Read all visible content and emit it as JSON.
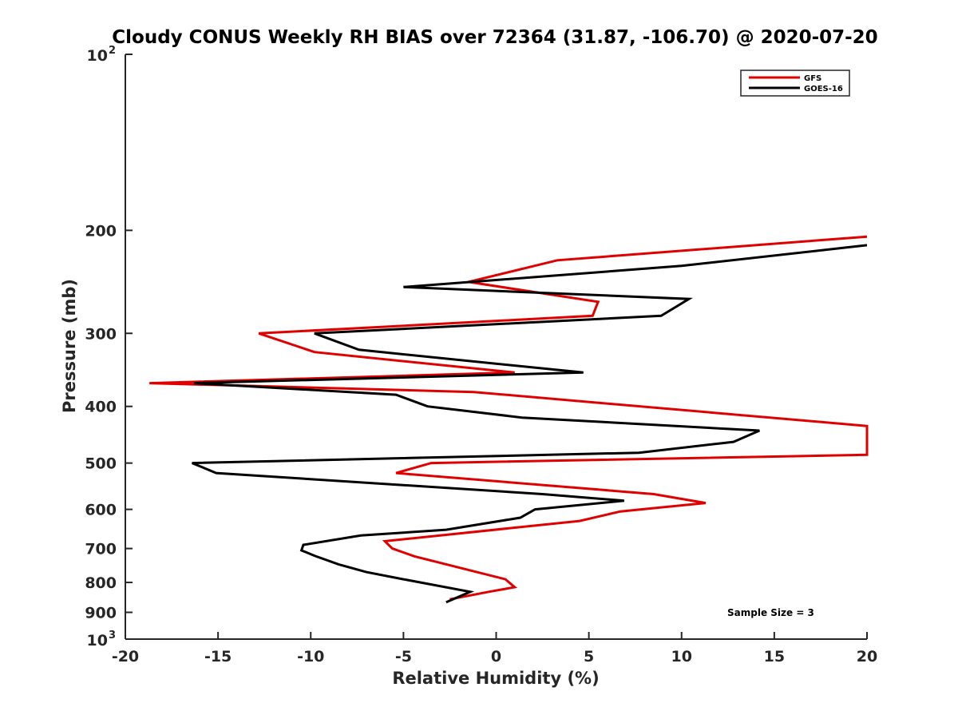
{
  "chart_data": {
    "type": "line",
    "title": "Cloudy CONUS Weekly RH BIAS over 72364 (31.87, -106.70) @ 2020-07-20",
    "xlabel": "Relative Humidity (%)",
    "ylabel": "Pressure (mb)",
    "xlim": [
      -20,
      20
    ],
    "ylim": [
      100,
      1000
    ],
    "y_scale": "log",
    "y_reversed": true,
    "xticks": [
      "-20",
      "-15",
      "-10",
      "-5",
      "0",
      "5",
      "10",
      "15",
      "20"
    ],
    "yticks_plain": [
      "200",
      "300",
      "400",
      "500",
      "600",
      "700",
      "800",
      "900"
    ],
    "ytick_top": {
      "base": "10",
      "exp": "2"
    },
    "ytick_bottom": {
      "base": "10",
      "exp": "3"
    },
    "legend_placement": "top-right",
    "grid": false,
    "annotation": "Sample Size = 3",
    "series": [
      {
        "name": "GFS",
        "color": "#e00000",
        "points": [
          [
            20,
            205
          ],
          [
            3.3,
            225
          ],
          [
            -1.5,
            245
          ],
          [
            5.5,
            265
          ],
          [
            5.2,
            280
          ],
          [
            -12.8,
            300
          ],
          [
            -9.8,
            323
          ],
          [
            1,
            350
          ],
          [
            -18.7,
            365
          ],
          [
            -1.2,
            378
          ],
          [
            20,
            432
          ],
          [
            20,
            484
          ],
          [
            -3.5,
            500
          ],
          [
            -5.4,
            520
          ],
          [
            8.5,
            565
          ],
          [
            11.3,
            585
          ],
          [
            6.7,
            605
          ],
          [
            4.5,
            628
          ],
          [
            -6,
            680
          ],
          [
            -5.6,
            700
          ],
          [
            -4.4,
            722
          ],
          [
            0.5,
            790
          ],
          [
            1,
            815
          ],
          [
            -0.4,
            830
          ],
          [
            -2.5,
            855
          ]
        ]
      },
      {
        "name": "GOES-16",
        "color": "#000000",
        "points": [
          [
            20,
            212
          ],
          [
            10,
            230
          ],
          [
            -5,
            250
          ],
          [
            10.4,
            262
          ],
          [
            8.9,
            280
          ],
          [
            -9.8,
            300
          ],
          [
            -7.4,
            320
          ],
          [
            4.7,
            350
          ],
          [
            -16.3,
            365
          ],
          [
            -5.4,
            382
          ],
          [
            -3.7,
            400
          ],
          [
            1.4,
            418
          ],
          [
            14.2,
            440
          ],
          [
            12.8,
            460
          ],
          [
            7.7,
            480
          ],
          [
            -16.4,
            500
          ],
          [
            -15.1,
            520
          ],
          [
            2.5,
            565
          ],
          [
            6.9,
            580
          ],
          [
            2.1,
            600
          ],
          [
            1.3,
            620
          ],
          [
            -2.7,
            650
          ],
          [
            -7.3,
            665
          ],
          [
            -10.4,
            690
          ],
          [
            -10.5,
            705
          ],
          [
            -9.8,
            720
          ],
          [
            -8.5,
            745
          ],
          [
            -7,
            768
          ],
          [
            -5,
            790
          ],
          [
            -1.4,
            830
          ],
          [
            -2.7,
            865
          ]
        ]
      }
    ]
  }
}
